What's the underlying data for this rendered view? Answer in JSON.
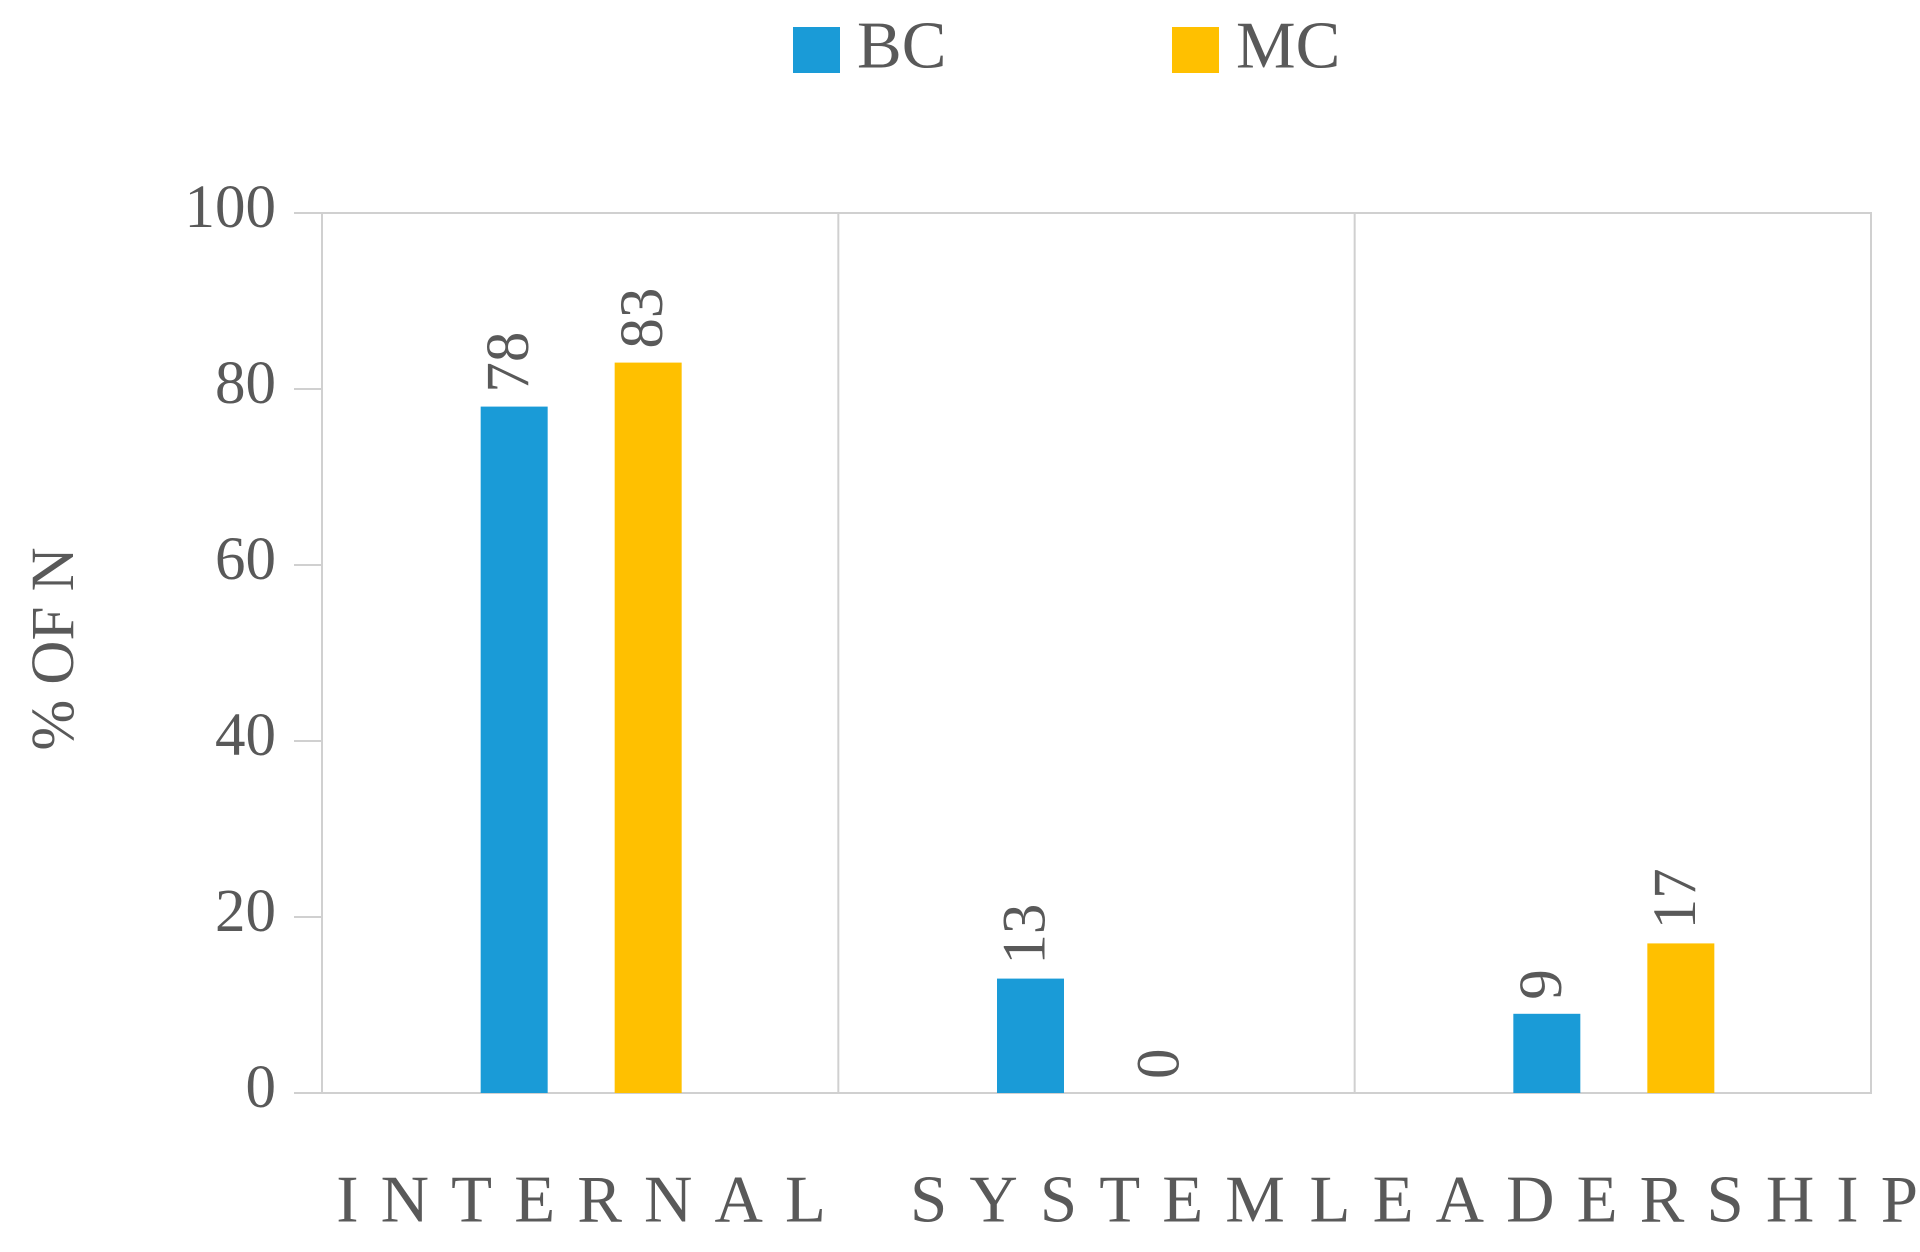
{
  "chart_data": {
    "type": "bar",
    "y_label": "% OF N",
    "categories": [
      "INTERNAL",
      "SYSTEM",
      "LEADERSHIP"
    ],
    "series": [
      {
        "name": "BC",
        "color": "#1a9bd7",
        "values": [
          78,
          13,
          9
        ]
      },
      {
        "name": "MC",
        "color": "#ffc000",
        "values": [
          83,
          0,
          17
        ]
      }
    ],
    "ylim": [
      0,
      100
    ],
    "yticks": [
      0,
      20,
      40,
      60,
      80,
      100
    ],
    "legend": "top"
  }
}
